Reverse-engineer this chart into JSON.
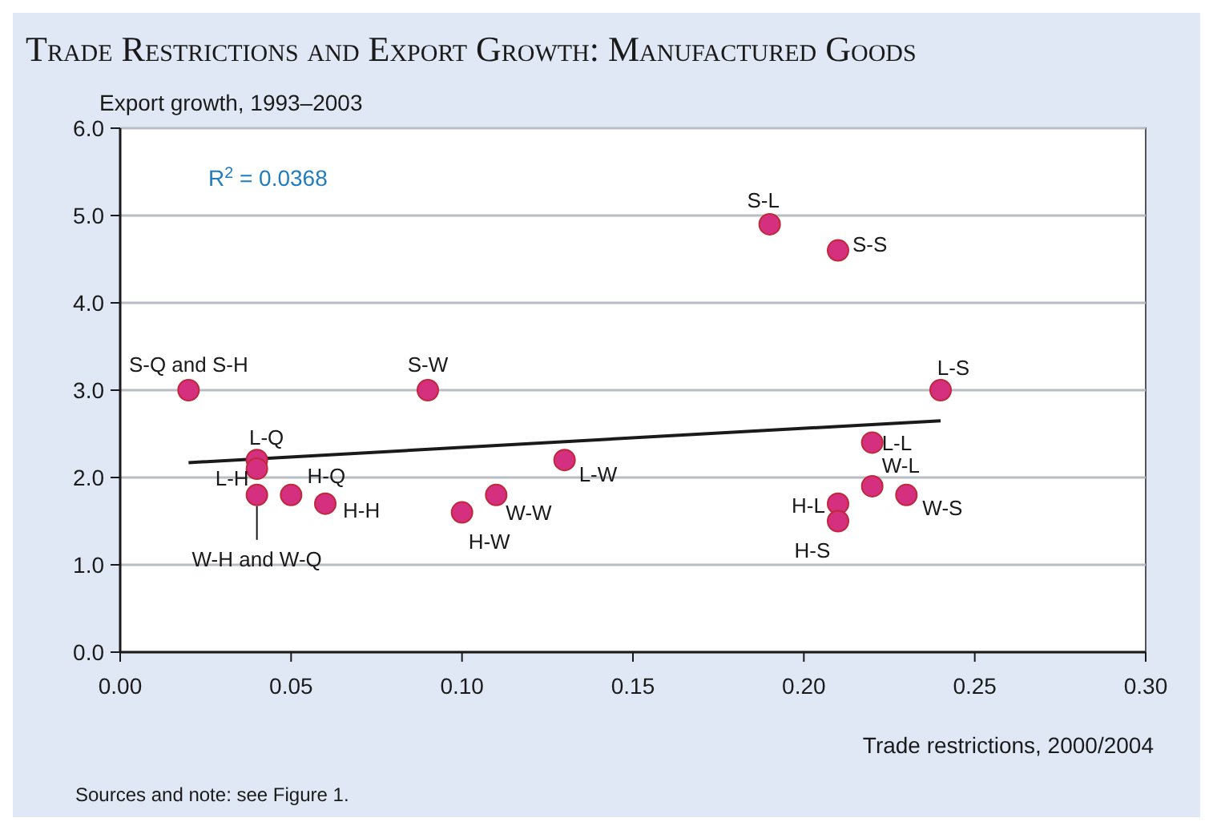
{
  "chart_data": {
    "type": "scatter",
    "title": "Trade Restrictions and Export Growth: Manufactured Goods",
    "xlabel": "Trade restrictions, 2000/2004",
    "ylabel": "Export growth, 1993–2003",
    "xlim": [
      0,
      0.3
    ],
    "xticks": [
      {
        "value": 0,
        "label": "0.00"
      },
      {
        "value": 0.05,
        "label": "0.05"
      },
      {
        "value": 0.1,
        "label": "0.10"
      },
      {
        "value": 0.15,
        "label": "0.15"
      },
      {
        "value": 0.2,
        "label": "0.20"
      },
      {
        "value": 0.25,
        "label": "0.25"
      },
      {
        "value": 0.3,
        "label": "0.30"
      }
    ],
    "ylim": [
      0,
      6
    ],
    "yticks": [
      {
        "value": 0,
        "label": "0.0"
      },
      {
        "value": 1,
        "label": "1.0"
      },
      {
        "value": 2,
        "label": "2.0"
      },
      {
        "value": 3,
        "label": "3.0"
      },
      {
        "value": 4,
        "label": "4.0"
      },
      {
        "value": 5,
        "label": "5.0"
      },
      {
        "value": 6,
        "label": "6.0"
      }
    ],
    "grid": "y",
    "series": [
      {
        "marker": "circle",
        "color": "#d4307f",
        "x": [
          0.02,
          0.09,
          0.04,
          0.04,
          0.04,
          0.05,
          0.06,
          0.1,
          0.11,
          0.13,
          0.19,
          0.21,
          0.24,
          0.22,
          0.22,
          0.23,
          0.21,
          0.21
        ],
        "values": [
          3.0,
          3.0,
          2.2,
          2.1,
          1.8,
          1.8,
          1.7,
          1.6,
          1.8,
          2.2,
          4.9,
          4.6,
          3.0,
          2.4,
          1.9,
          1.8,
          1.7,
          1.5
        ]
      },
      {
        "type": "line",
        "color": "#1a1a1a",
        "x": [
          0.02,
          0.24
        ],
        "values": [
          2.17,
          2.65
        ]
      }
    ],
    "annotations": [
      {
        "text": "S-Q and S-H",
        "x": 0.02,
        "y": 3.0
      },
      {
        "text": "S-W",
        "x": 0.09,
        "y": 3.0
      },
      {
        "text": "L-Q",
        "x": 0.04,
        "y": 2.2
      },
      {
        "text": "L-H",
        "x": 0.04,
        "y": 2.1
      },
      {
        "text": "W-H and W-Q",
        "x": 0.04,
        "y": 1.8
      },
      {
        "text": "H-Q",
        "x": 0.05,
        "y": 1.8
      },
      {
        "text": "H-H",
        "x": 0.06,
        "y": 1.7
      },
      {
        "text": "H-W",
        "x": 0.1,
        "y": 1.6
      },
      {
        "text": "W-W",
        "x": 0.11,
        "y": 1.8
      },
      {
        "text": "L-W",
        "x": 0.13,
        "y": 2.2
      },
      {
        "text": "S-L",
        "x": 0.19,
        "y": 4.9
      },
      {
        "text": "S-S",
        "x": 0.21,
        "y": 4.6
      },
      {
        "text": "L-S",
        "x": 0.24,
        "y": 3.0
      },
      {
        "text": "L-L",
        "x": 0.22,
        "y": 2.4
      },
      {
        "text": "W-L",
        "x": 0.22,
        "y": 1.9
      },
      {
        "text": "W-S",
        "x": 0.23,
        "y": 1.8
      },
      {
        "text": "H-L",
        "x": 0.21,
        "y": 1.7
      },
      {
        "text": "H-S",
        "x": 0.21,
        "y": 1.5
      },
      "R$^{2}$ = 0.0368",
      "Sources and note: see Figure 1."
    ]
  }
}
